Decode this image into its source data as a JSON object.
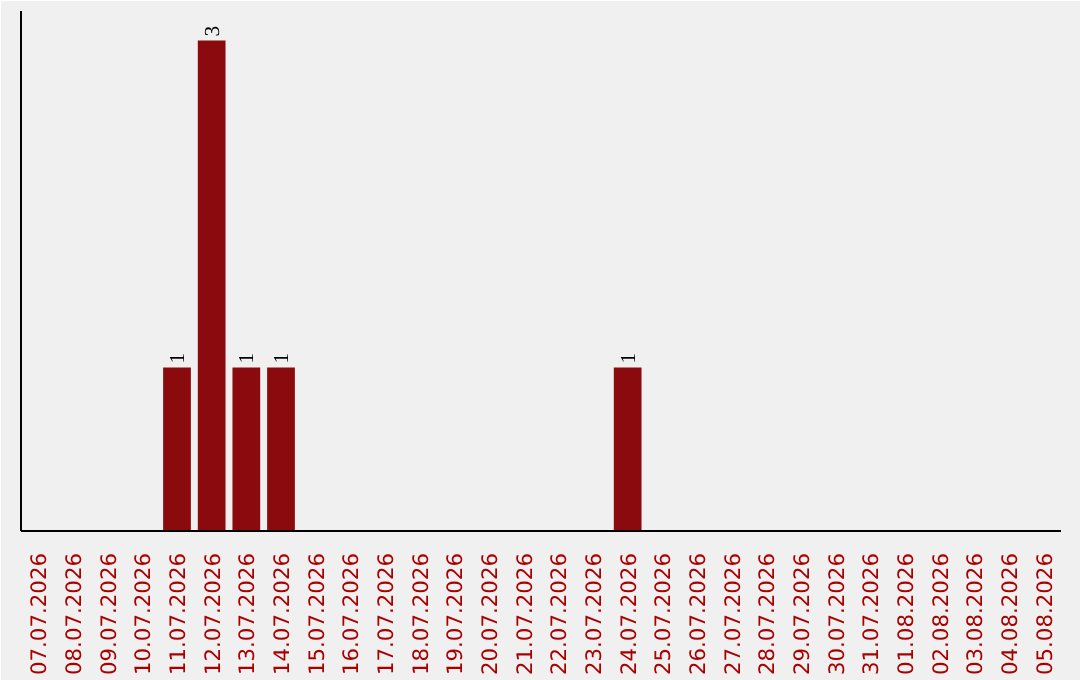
{
  "chart_data": {
    "type": "bar",
    "categories": [
      "07.07.2026",
      "08.07.2026",
      "09.07.2026",
      "10.07.2026",
      "11.07.2026",
      "12.07.2026",
      "13.07.2026",
      "14.07.2026",
      "15.07.2026",
      "16.07.2026",
      "17.07.2026",
      "18.07.2026",
      "19.07.2026",
      "20.07.2026",
      "21.07.2026",
      "22.07.2026",
      "23.07.2026",
      "24.07.2026",
      "25.07.2026",
      "26.07.2026",
      "27.07.2026",
      "28.07.2026",
      "29.07.2026",
      "30.07.2026",
      "31.07.2026",
      "01.08.2026",
      "02.08.2026",
      "03.08.2026",
      "04.08.2026",
      "05.08.2026"
    ],
    "values": [
      0,
      0,
      0,
      0,
      1,
      3,
      1,
      1,
      0,
      0,
      0,
      0,
      0,
      0,
      0,
      0,
      0,
      1,
      0,
      0,
      0,
      0,
      0,
      0,
      0,
      0,
      0,
      0,
      0,
      0
    ],
    "value_labels": [
      null,
      null,
      null,
      null,
      "1",
      "3",
      "1",
      "1",
      null,
      null,
      null,
      null,
      null,
      null,
      null,
      null,
      null,
      "1",
      null,
      null,
      null,
      null,
      null,
      null,
      null,
      null,
      null,
      null,
      null,
      null
    ],
    "color": "#8b0a0e",
    "grid": false,
    "tick_labels": "x"
  }
}
